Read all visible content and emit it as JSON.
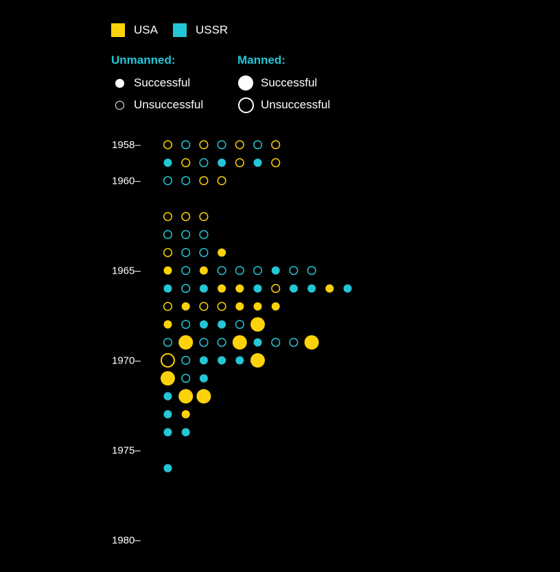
{
  "legend": {
    "countries": [
      {
        "name": "USA",
        "color": "#fcd20a"
      },
      {
        "name": "USSR",
        "color": "#24c6d6"
      }
    ],
    "unmanned_heading": "Unmanned:",
    "manned_heading": "Manned:",
    "successful_label": "Successful",
    "unsuccessful_label": "Unsuccessful"
  },
  "chart_data": {
    "type": "scatter",
    "title": "",
    "xlabel": "",
    "ylabel": "",
    "year_ticks": [
      "1958",
      "1960",
      "1965",
      "1970",
      "1975",
      "1980"
    ],
    "ylim": [
      1958,
      1980
    ],
    "colors": {
      "USA": "#fcd20a",
      "USSR": "#24c6d6"
    },
    "encoding": {
      "color": "country",
      "fill": "successful",
      "size": "manned"
    },
    "rows": [
      {
        "year": 1958,
        "missions": [
          {
            "country": "USA",
            "success": false,
            "manned": false
          },
          {
            "country": "USSR",
            "success": false,
            "manned": false
          },
          {
            "country": "USA",
            "success": false,
            "manned": false
          },
          {
            "country": "USSR",
            "success": false,
            "manned": false
          },
          {
            "country": "USA",
            "success": false,
            "manned": false
          },
          {
            "country": "USSR",
            "success": false,
            "manned": false
          },
          {
            "country": "USA",
            "success": false,
            "manned": false
          }
        ]
      },
      {
        "year": 1959,
        "missions": [
          {
            "country": "USSR",
            "success": true,
            "manned": false
          },
          {
            "country": "USA",
            "success": false,
            "manned": false
          },
          {
            "country": "USSR",
            "success": false,
            "manned": false
          },
          {
            "country": "USSR",
            "success": true,
            "manned": false
          },
          {
            "country": "USA",
            "success": false,
            "manned": false
          },
          {
            "country": "USSR",
            "success": true,
            "manned": false
          },
          {
            "country": "USA",
            "success": false,
            "manned": false
          }
        ]
      },
      {
        "year": 1960,
        "missions": [
          {
            "country": "USSR",
            "success": false,
            "manned": false
          },
          {
            "country": "USSR",
            "success": false,
            "manned": false
          },
          {
            "country": "USA",
            "success": false,
            "manned": false
          },
          {
            "country": "USA",
            "success": false,
            "manned": false
          }
        ]
      },
      {
        "year": 1961,
        "missions": []
      },
      {
        "year": 1962,
        "missions": [
          {
            "country": "USA",
            "success": false,
            "manned": false
          },
          {
            "country": "USA",
            "success": false,
            "manned": false
          },
          {
            "country": "USA",
            "success": false,
            "manned": false
          }
        ]
      },
      {
        "year": 1963,
        "missions": [
          {
            "country": "USSR",
            "success": false,
            "manned": false
          },
          {
            "country": "USSR",
            "success": false,
            "manned": false
          },
          {
            "country": "USSR",
            "success": false,
            "manned": false
          }
        ]
      },
      {
        "year": 1964,
        "missions": [
          {
            "country": "USA",
            "success": false,
            "manned": false
          },
          {
            "country": "USSR",
            "success": false,
            "manned": false
          },
          {
            "country": "USSR",
            "success": false,
            "manned": false
          },
          {
            "country": "USA",
            "success": true,
            "manned": false
          }
        ]
      },
      {
        "year": 1965,
        "missions": [
          {
            "country": "USA",
            "success": true,
            "manned": false
          },
          {
            "country": "USSR",
            "success": false,
            "manned": false
          },
          {
            "country": "USA",
            "success": true,
            "manned": false
          },
          {
            "country": "USSR",
            "success": false,
            "manned": false
          },
          {
            "country": "USSR",
            "success": false,
            "manned": false
          },
          {
            "country": "USSR",
            "success": false,
            "manned": false
          },
          {
            "country": "USSR",
            "success": true,
            "manned": false
          },
          {
            "country": "USSR",
            "success": false,
            "manned": false
          },
          {
            "country": "USSR",
            "success": false,
            "manned": false
          }
        ]
      },
      {
        "year": 1966,
        "missions": [
          {
            "country": "USSR",
            "success": true,
            "manned": false
          },
          {
            "country": "USSR",
            "success": false,
            "manned": false
          },
          {
            "country": "USSR",
            "success": true,
            "manned": false
          },
          {
            "country": "USA",
            "success": true,
            "manned": false
          },
          {
            "country": "USA",
            "success": true,
            "manned": false
          },
          {
            "country": "USSR",
            "success": true,
            "manned": false
          },
          {
            "country": "USA",
            "success": false,
            "manned": false
          },
          {
            "country": "USSR",
            "success": true,
            "manned": false
          },
          {
            "country": "USSR",
            "success": true,
            "manned": false
          },
          {
            "country": "USA",
            "success": true,
            "manned": false
          },
          {
            "country": "USSR",
            "success": true,
            "manned": false
          }
        ]
      },
      {
        "year": 1967,
        "missions": [
          {
            "country": "USA",
            "success": false,
            "manned": false
          },
          {
            "country": "USA",
            "success": true,
            "manned": false
          },
          {
            "country": "USA",
            "success": false,
            "manned": false
          },
          {
            "country": "USA",
            "success": false,
            "manned": false
          },
          {
            "country": "USA",
            "success": true,
            "manned": false
          },
          {
            "country": "USA",
            "success": true,
            "manned": false
          },
          {
            "country": "USA",
            "success": true,
            "manned": false
          }
        ]
      },
      {
        "year": 1968,
        "missions": [
          {
            "country": "USA",
            "success": true,
            "manned": false
          },
          {
            "country": "USSR",
            "success": false,
            "manned": false
          },
          {
            "country": "USSR",
            "success": true,
            "manned": false
          },
          {
            "country": "USSR",
            "success": true,
            "manned": false
          },
          {
            "country": "USSR",
            "success": false,
            "manned": false
          },
          {
            "country": "USA",
            "success": true,
            "manned": true
          }
        ]
      },
      {
        "year": 1969,
        "missions": [
          {
            "country": "USSR",
            "success": false,
            "manned": false
          },
          {
            "country": "USA",
            "success": true,
            "manned": true
          },
          {
            "country": "USSR",
            "success": false,
            "manned": false
          },
          {
            "country": "USSR",
            "success": false,
            "manned": false
          },
          {
            "country": "USA",
            "success": true,
            "manned": true
          },
          {
            "country": "USSR",
            "success": true,
            "manned": false
          },
          {
            "country": "USSR",
            "success": false,
            "manned": false
          },
          {
            "country": "USSR",
            "success": false,
            "manned": false
          },
          {
            "country": "USA",
            "success": true,
            "manned": true
          }
        ]
      },
      {
        "year": 1970,
        "missions": [
          {
            "country": "USA",
            "success": false,
            "manned": true
          },
          {
            "country": "USSR",
            "success": false,
            "manned": false
          },
          {
            "country": "USSR",
            "success": true,
            "manned": false
          },
          {
            "country": "USSR",
            "success": true,
            "manned": false
          },
          {
            "country": "USSR",
            "success": true,
            "manned": false
          },
          {
            "country": "USA",
            "success": true,
            "manned": true
          }
        ]
      },
      {
        "year": 1971,
        "missions": [
          {
            "country": "USA",
            "success": true,
            "manned": true
          },
          {
            "country": "USSR",
            "success": false,
            "manned": false
          },
          {
            "country": "USSR",
            "success": true,
            "manned": false
          }
        ]
      },
      {
        "year": 1972,
        "missions": [
          {
            "country": "USSR",
            "success": true,
            "manned": false
          },
          {
            "country": "USA",
            "success": true,
            "manned": true
          },
          {
            "country": "USA",
            "success": true,
            "manned": true
          }
        ]
      },
      {
        "year": 1973,
        "missions": [
          {
            "country": "USSR",
            "success": true,
            "manned": false
          },
          {
            "country": "USA",
            "success": true,
            "manned": false
          }
        ]
      },
      {
        "year": 1974,
        "missions": [
          {
            "country": "USSR",
            "success": true,
            "manned": false
          },
          {
            "country": "USSR",
            "success": true,
            "manned": false
          }
        ]
      },
      {
        "year": 1975,
        "missions": []
      },
      {
        "year": 1976,
        "missions": [
          {
            "country": "USSR",
            "success": true,
            "manned": false
          }
        ]
      }
    ]
  }
}
